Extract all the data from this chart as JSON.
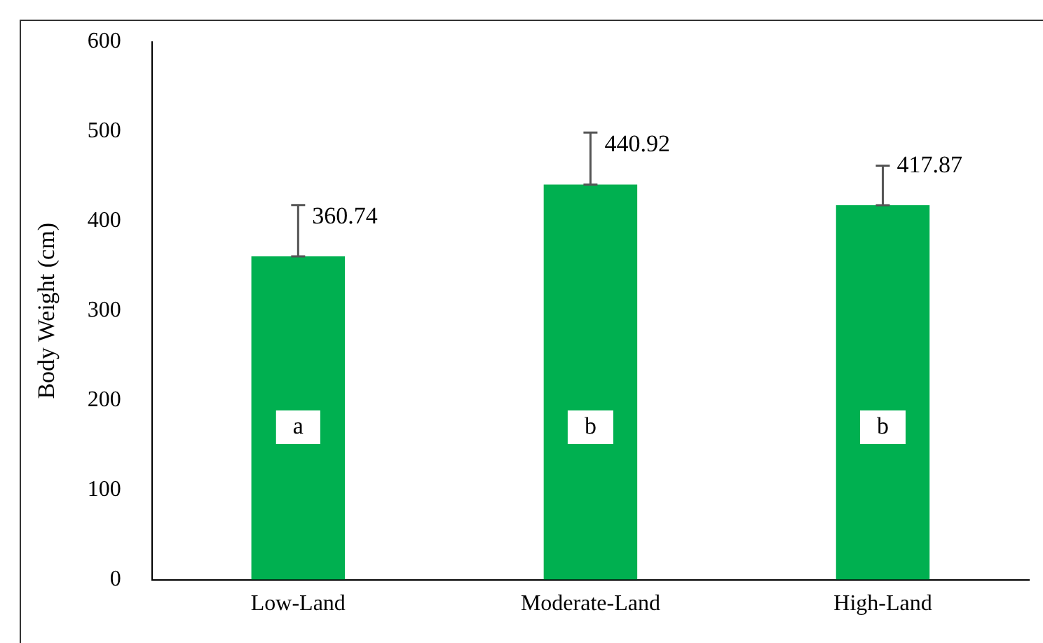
{
  "chart_data": {
    "type": "bar",
    "ylabel": "Body Weight (cm)",
    "categories": [
      "Low-Land",
      "Moderate-Land",
      "High-Land"
    ],
    "values": [
      360.74,
      440.92,
      417.87
    ],
    "color": "#00b050",
    "errors": [
      [
        360.74,
        418
      ],
      [
        440.92,
        499
      ],
      [
        417.87,
        462
      ]
    ],
    "data_labels": true,
    "ylim": [
      0,
      600
    ],
    "yticks": [
      0,
      100,
      200,
      300,
      400,
      500,
      600
    ],
    "grid": false,
    "legend": false,
    "annotations": [
      {
        "text": "a",
        "x": "Low-Land",
        "y": 170
      },
      {
        "text": "b",
        "x": "Moderate-Land",
        "y": 170
      },
      {
        "text": "b",
        "x": "High-Land",
        "y": 170
      }
    ]
  }
}
